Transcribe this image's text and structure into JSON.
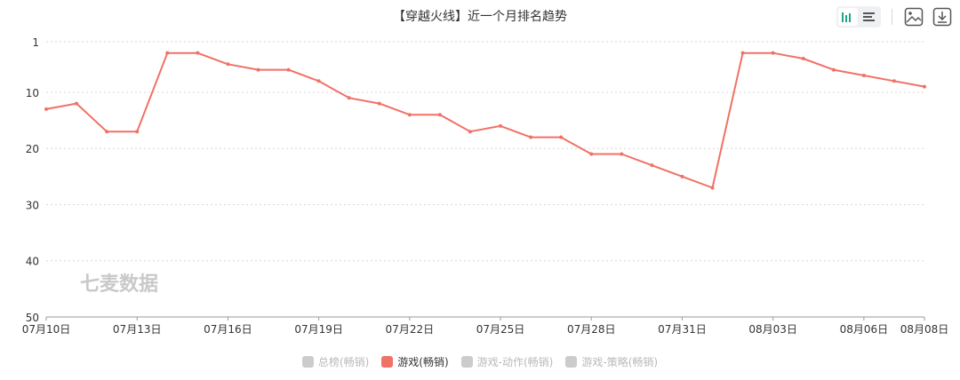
{
  "title": "【穿越火线】近一个月排名趋势",
  "toolbar": {
    "bar_icon": "bar-chart-icon",
    "list_icon": "list-icon",
    "image_icon": "image-download-icon",
    "download_icon": "download-icon",
    "accent": "#1aa889"
  },
  "watermark": "七麦数据",
  "legend": [
    {
      "label": "总榜(畅销)",
      "active": false,
      "color": "#cccccc"
    },
    {
      "label": "游戏(畅销)",
      "active": true,
      "color": "#f07166"
    },
    {
      "label": "游戏-动作(畅销)",
      "active": false,
      "color": "#cccccc"
    },
    {
      "label": "游戏-策略(畅销)",
      "active": false,
      "color": "#cccccc"
    }
  ],
  "chart_data": {
    "type": "line",
    "x_ticks": [
      "07月10日",
      "07月13日",
      "07月16日",
      "07月19日",
      "07月22日",
      "07月25日",
      "07月28日",
      "07月31日",
      "08月03日",
      "08月06日",
      "08月08日"
    ],
    "x": [
      "07-10",
      "07-11",
      "07-12",
      "07-13",
      "07-14",
      "07-15",
      "07-16",
      "07-17",
      "07-18",
      "07-19",
      "07-20",
      "07-21",
      "07-22",
      "07-23",
      "07-24",
      "07-25",
      "07-26",
      "07-27",
      "07-28",
      "07-29",
      "07-30",
      "07-31",
      "08-01",
      "08-02",
      "08-03",
      "08-04",
      "08-05",
      "08-06",
      "08-07",
      "08-08"
    ],
    "series": [
      {
        "name": "游戏(畅销)",
        "color": "#f07166",
        "values": [
          13,
          12,
          17,
          17,
          3,
          3,
          5,
          6,
          6,
          8,
          11,
          12,
          14,
          14,
          17,
          16,
          18,
          18,
          21,
          21,
          23,
          25,
          27,
          3,
          3,
          4,
          6,
          7,
          8,
          9
        ]
      }
    ],
    "y_ticks": [
      1,
      10,
      20,
      30,
      40,
      50
    ],
    "ylim": [
      1,
      50
    ],
    "y_inverted": true,
    "grid": true,
    "legend_position": "bottom"
  }
}
